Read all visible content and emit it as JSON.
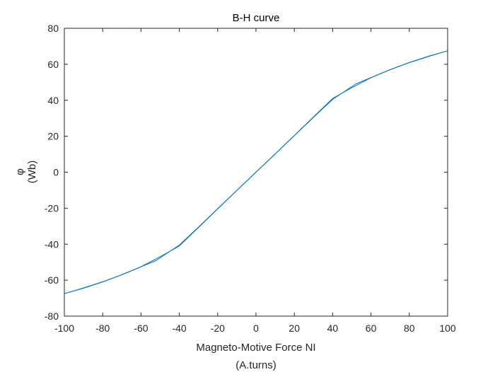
{
  "chart_data": {
    "type": "line",
    "title": "B-H curve",
    "xlabel_lines": [
      "Magneto-Motive Force NI",
      "(A.turns)"
    ],
    "ylabel_lines": [
      "φ",
      "(Wb)"
    ],
    "xlim": [
      -100,
      100
    ],
    "ylim": [
      -80,
      80
    ],
    "xticks": [
      -100,
      -80,
      -60,
      -40,
      -20,
      0,
      20,
      40,
      60,
      80,
      100
    ],
    "yticks": [
      -80,
      -60,
      -40,
      -20,
      0,
      20,
      40,
      60,
      80
    ],
    "xtick_labels": [
      "-100",
      "-80",
      "-60",
      "-40",
      "-20",
      "0",
      "20",
      "40",
      "60",
      "80",
      "100"
    ],
    "ytick_labels": [
      "-80",
      "-60",
      "-40",
      "-20",
      "0",
      "20",
      "40",
      "60",
      "80"
    ],
    "grid": false,
    "box": true,
    "series": [
      {
        "color": "#0072bd",
        "x": [
          -100,
          -90,
          -80,
          -70,
          -60,
          -50,
          -40,
          -30,
          -20,
          -10,
          0,
          10,
          20,
          30,
          40,
          50,
          60,
          70,
          80,
          90,
          100
        ],
        "y": [
          -67.5,
          -64.5,
          -61,
          -57,
          -52.5,
          -47,
          -41,
          -30.7,
          -20.4,
          -10.2,
          0,
          10.2,
          20.4,
          30.7,
          41,
          47,
          52.5,
          57,
          61,
          64.5,
          67.5
        ]
      },
      {
        "color": "#0072bd",
        "x": [
          -100,
          -90,
          -80,
          -70,
          -60,
          -52,
          -40,
          -30,
          -20,
          -10,
          0,
          10,
          20,
          30,
          40,
          52,
          60,
          70,
          80,
          90,
          100
        ],
        "y": [
          -67.5,
          -64.3,
          -60.9,
          -57,
          -52.6,
          -49,
          -40.5,
          -30.5,
          -20.3,
          -10.1,
          0,
          10.1,
          20.3,
          30.5,
          40.5,
          49,
          52.6,
          57,
          60.9,
          64.3,
          67.5
        ]
      }
    ]
  }
}
